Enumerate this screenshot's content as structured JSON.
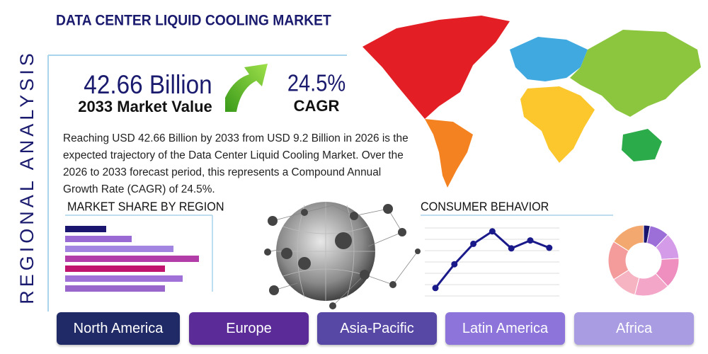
{
  "header": {
    "title": "DATA CENTER LIQUID COOLING MARKET"
  },
  "sidebar": {
    "label": "REGIONAL ANALYSIS"
  },
  "stats": {
    "market_value": "42.66 Billion",
    "market_value_label": "2033 Market Value",
    "cagr": "24.5%",
    "cagr_label": "CAGR"
  },
  "description": "Reaching USD 42.66 Billion by 2033 from USD 9.2 Billion in 2026 is the expected trajectory of the Data Center Liquid Cooling Market. Over the 2026 to 2033 forecast period, this represents a Compound Annual Growth Rate (CAGR) of 24.5%.",
  "region_buttons": [
    {
      "label": "North America",
      "color": "#1f2a66"
    },
    {
      "label": "Europe",
      "color": "#5b2c98"
    },
    {
      "label": "Asia-Pacific",
      "color": "#5748a6"
    },
    {
      "label": "Latin America",
      "color": "#8c74da"
    },
    {
      "label": "Africa",
      "color": "#a99ce2"
    }
  ],
  "chart_data": [
    {
      "type": "bar",
      "title": "MARKET SHARE BY REGION",
      "orientation": "horizontal",
      "values": [
        58,
        94,
        153,
        189,
        141,
        166,
        141
      ],
      "colors": [
        "#1a1670",
        "#9a6ad4",
        "#a285e0",
        "#b23ca8",
        "#c0146e",
        "#a072d8",
        "#9966cc"
      ],
      "xlim": [
        0,
        208
      ]
    },
    {
      "type": "line",
      "title": "CONSUMER BEHAVIOR",
      "color": "#1a1a8a",
      "values": [
        0.7,
        2.8,
        4.6,
        5.7,
        4.2,
        4.9,
        4.25
      ],
      "ylim": [
        0,
        6
      ],
      "yticks": [
        0,
        1,
        2,
        3,
        4,
        5,
        6
      ],
      "grid": true
    },
    {
      "type": "pie",
      "donut": true,
      "values": [
        3,
        9,
        12,
        14,
        16,
        12,
        18,
        16
      ],
      "colors": [
        "#1a1670",
        "#9c6ed8",
        "#d49be8",
        "#ee8fc0",
        "#f4a6c8",
        "#f6b3c2",
        "#f49c9c",
        "#f2a86e"
      ]
    }
  ]
}
